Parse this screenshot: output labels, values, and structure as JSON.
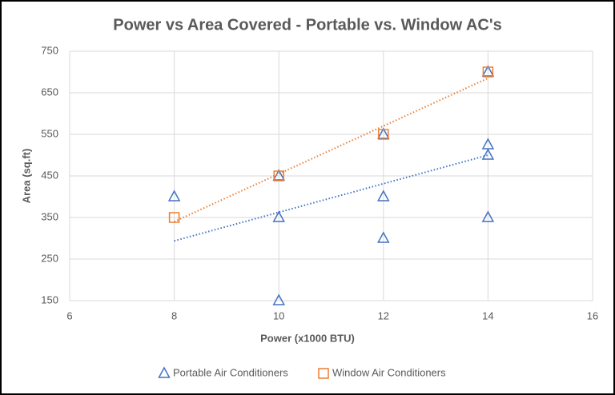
{
  "chart_data": {
    "type": "scatter",
    "title": "Power vs Area Covered - Portable vs. Window AC's",
    "x_label": "Power (x1000 BTU)",
    "y_label": "Area (sq.ft)",
    "xlim": [
      6,
      16
    ],
    "xticks": [
      6,
      8,
      10,
      12,
      14,
      16
    ],
    "ylim": [
      150,
      750
    ],
    "yticks": [
      150,
      250,
      350,
      450,
      550,
      650,
      750
    ],
    "grid": true,
    "trendline": true,
    "legend": "bottom",
    "series": [
      {
        "name": "Portable Air Conditioners",
        "color": "#4472c4",
        "marker": "triangle",
        "x": [
          8,
          10,
          10,
          10,
          12,
          12,
          12,
          14,
          14,
          14,
          14
        ],
        "values": [
          400,
          350,
          150,
          450,
          550,
          400,
          300,
          700,
          525,
          500,
          350
        ]
      },
      {
        "name": "Window Air Conditioners",
        "color": "#ed7d31",
        "marker": "square",
        "x": [
          8,
          10,
          12,
          14
        ],
        "values": [
          350,
          450,
          550,
          700
        ]
      }
    ]
  }
}
